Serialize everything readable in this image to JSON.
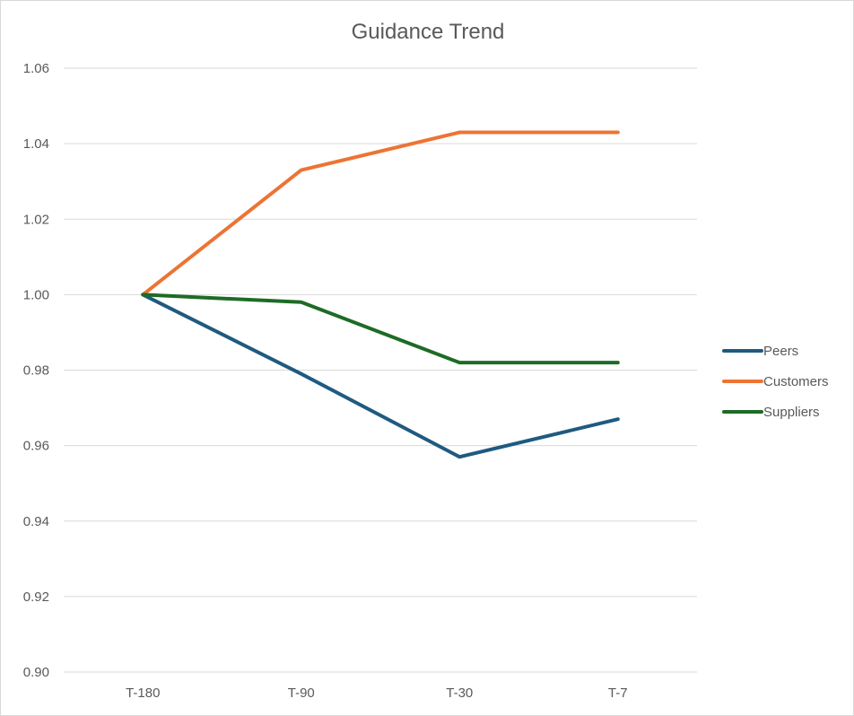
{
  "chart_data": {
    "type": "line",
    "title": "Guidance Trend",
    "categories": [
      "T-180",
      "T-90",
      "T-30",
      "T-7"
    ],
    "ylim": [
      0.9,
      1.06
    ],
    "y_ticks": [
      "1.06",
      "1.04",
      "1.02",
      "1.00",
      "0.98",
      "0.96",
      "0.94",
      "0.92",
      "0.90"
    ],
    "grid": "horizontal",
    "legend_position": "right",
    "series": [
      {
        "name": "Peers",
        "color": "#1f5a80",
        "values": [
          1.0,
          0.979,
          0.957,
          0.967
        ]
      },
      {
        "name": "Customers",
        "color": "#ec7434",
        "values": [
          1.0,
          1.033,
          1.043,
          1.043
        ]
      },
      {
        "name": "Suppliers",
        "color": "#1e6b25",
        "values": [
          1.0,
          0.998,
          0.982,
          0.982
        ]
      }
    ]
  }
}
